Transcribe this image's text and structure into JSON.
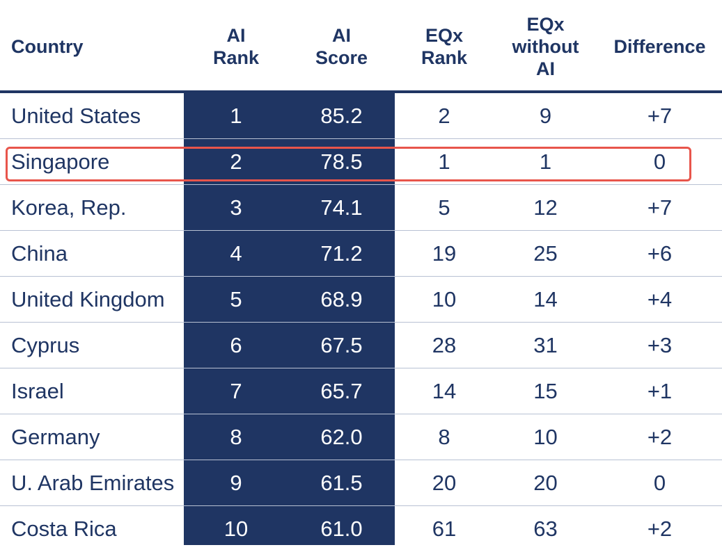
{
  "chart_data": {
    "type": "table",
    "columns": [
      "Country",
      "AI\nRank",
      "AI\nScore",
      "EQx\nRank",
      "EQx\nwithout\nAI",
      "Difference"
    ],
    "rows": [
      [
        "United States",
        "1",
        "85.2",
        "2",
        "9",
        "+7"
      ],
      [
        "Singapore",
        "2",
        "78.5",
        "1",
        "1",
        "0"
      ],
      [
        "Korea, Rep.",
        "3",
        "74.1",
        "5",
        "12",
        "+7"
      ],
      [
        "China",
        "4",
        "71.2",
        "19",
        "25",
        "+6"
      ],
      [
        "United Kingdom",
        "5",
        "68.9",
        "10",
        "14",
        "+4"
      ],
      [
        "Cyprus",
        "6",
        "67.5",
        "28",
        "31",
        "+3"
      ],
      [
        "Israel",
        "7",
        "65.7",
        "14",
        "15",
        "+1"
      ],
      [
        "Germany",
        "8",
        "62.0",
        "8",
        "10",
        "+2"
      ],
      [
        "U. Arab Emirates",
        "9",
        "61.5",
        "20",
        "20",
        "0"
      ],
      [
        "Costa Rica",
        "10",
        "61.0",
        "61",
        "63",
        "+2"
      ]
    ],
    "highlighted_row": "Singapore",
    "highlighted_columns": [
      "AI\nRank",
      "AI\nScore"
    ]
  },
  "colors": {
    "navy": "#1f3563",
    "white": "#ffffff",
    "separator": "#b8c1d3",
    "highlight_outline": "#e8554b"
  }
}
